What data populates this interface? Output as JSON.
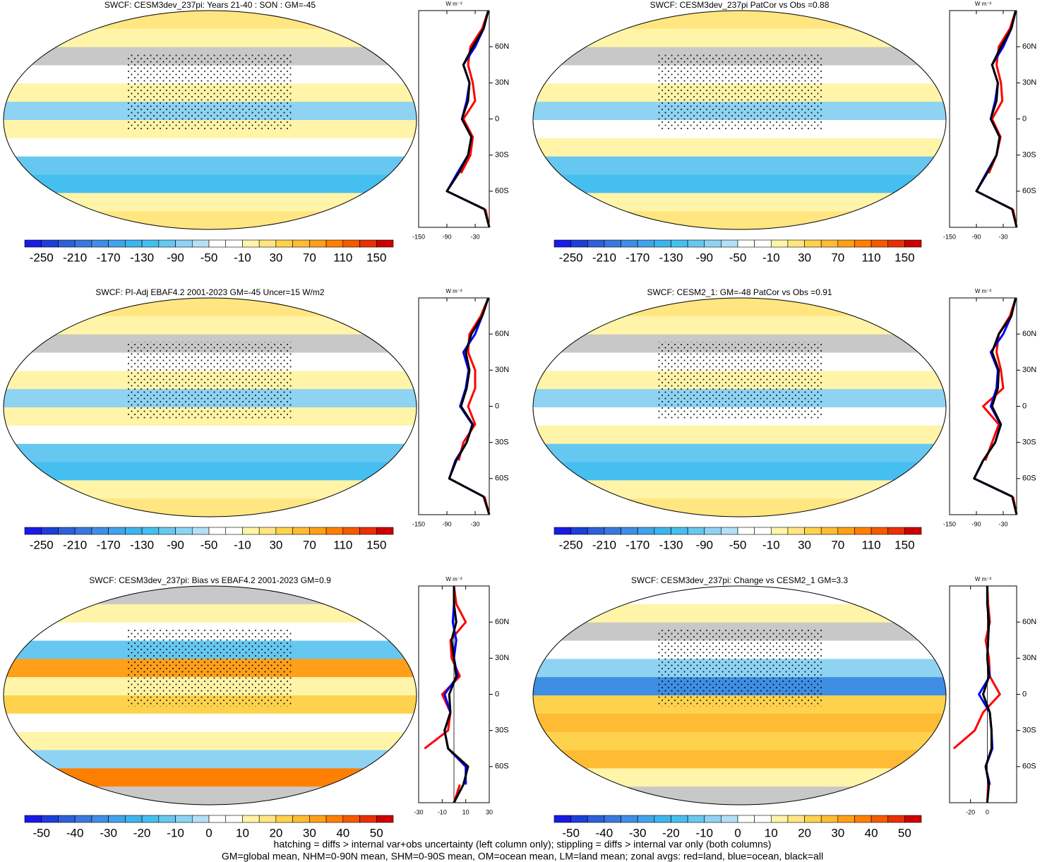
{
  "chart_data": [
    {
      "type": "map",
      "title": "SWCF: CESM3dev_237pi: Years 21-40 : SON : GM=-45",
      "colorbar_lim": [
        -270,
        170
      ],
      "colorbar_ticks": [
        -250,
        -210,
        -170,
        -130,
        -90,
        -50,
        -10,
        30,
        70,
        110,
        150
      ],
      "colorbar_colors": [
        "#1a1ae6",
        "#1e3ed8",
        "#2f5fd8",
        "#3a78dd",
        "#3f8ee3",
        "#42a3ea",
        "#3db4ec",
        "#45bff0",
        "#66c8f0",
        "#8ed3f2",
        "#b3e0f5",
        "#ffffff",
        "#ffffff",
        "#fff4a8",
        "#ffe680",
        "#ffd24d",
        "#ffbb33",
        "#ff9f1a",
        "#ff8000",
        "#f55a00",
        "#e83000",
        "#cc0000"
      ]
    },
    {
      "type": "line",
      "x_label": "W m⁻²",
      "xlim": [
        -150,
        0
      ],
      "xticks": [
        -150,
        -90,
        -30
      ],
      "ylim": [
        -90,
        90
      ],
      "yticks": [
        {
          "value": -60,
          "label": "60S"
        },
        {
          "value": -30,
          "label": "30S"
        },
        {
          "value": 0,
          "label": "0"
        },
        {
          "value": 30,
          "label": "30N"
        },
        {
          "value": 60,
          "label": "60N"
        }
      ],
      "y": [
        -90,
        -75,
        -60,
        -45,
        -30,
        -15,
        0,
        15,
        30,
        45,
        60,
        75,
        90
      ],
      "series": [
        {
          "color": "#ff0000",
          "values": [
            0,
            -8,
            null,
            -60,
            -40,
            -35,
            -55,
            -30,
            -35,
            -45,
            -40,
            -15,
            -2
          ]
        },
        {
          "color": "#0000ff",
          "values": [
            null,
            -10,
            -90,
            -68,
            -45,
            -38,
            -58,
            -48,
            -42,
            -55,
            -30,
            -12,
            -2
          ]
        },
        {
          "color": "#000000",
          "values": [
            0,
            -10,
            -90,
            -65,
            -45,
            -38,
            -58,
            -45,
            -42,
            -55,
            -35,
            -12,
            -2
          ]
        }
      ]
    },
    {
      "type": "map",
      "title": "SWCF: CESM3dev_237pi PatCor vs Obs =0.88",
      "colorbar_lim": [
        -270,
        170
      ],
      "colorbar_ticks": [
        -250,
        -210,
        -170,
        -130,
        -90,
        -50,
        -10,
        30,
        70,
        110,
        150
      ],
      "colorbar_colors": [
        "#1a1ae6",
        "#1e3ed8",
        "#2f5fd8",
        "#3a78dd",
        "#3f8ee3",
        "#42a3ea",
        "#3db4ec",
        "#45bff0",
        "#66c8f0",
        "#8ed3f2",
        "#b3e0f5",
        "#ffffff",
        "#ffffff",
        "#fff4a8",
        "#ffe680",
        "#ffd24d",
        "#ffbb33",
        "#ff9f1a",
        "#ff8000",
        "#f55a00",
        "#e83000",
        "#cc0000"
      ]
    },
    {
      "type": "line",
      "x_label": "W m⁻²",
      "xlim": [
        -150,
        0
      ],
      "xticks": [
        -150,
        -90,
        -30
      ],
      "ylim": [
        -90,
        90
      ],
      "yticks": [
        {
          "value": -60,
          "label": "60S"
        },
        {
          "value": -30,
          "label": "30S"
        },
        {
          "value": 0,
          "label": "0"
        },
        {
          "value": 30,
          "label": "30N"
        },
        {
          "value": 60,
          "label": "60N"
        }
      ],
      "y": [
        -90,
        -75,
        -60,
        -45,
        -30,
        -15,
        0,
        15,
        30,
        45,
        60,
        75,
        90
      ],
      "series": [
        {
          "color": "#ff0000",
          "values": [
            0,
            -8,
            null,
            -62,
            -45,
            -36,
            -55,
            -32,
            -35,
            -45,
            -40,
            -15,
            -2
          ]
        },
        {
          "color": "#0000ff",
          "values": [
            null,
            -10,
            -90,
            -68,
            -45,
            -38,
            -58,
            -48,
            -42,
            -55,
            -30,
            -12,
            -2
          ]
        },
        {
          "color": "#000000",
          "values": [
            0,
            -10,
            -90,
            -66,
            -45,
            -38,
            -58,
            -45,
            -42,
            -55,
            -35,
            -12,
            -2
          ]
        }
      ]
    },
    {
      "type": "map",
      "title": "SWCF: PI-Adj EBAF4.2 2001-2023 GM=-45 Uncer=15 W/m2",
      "colorbar_lim": [
        -270,
        170
      ],
      "colorbar_ticks": [
        -250,
        -210,
        -170,
        -130,
        -90,
        -50,
        -10,
        30,
        70,
        110,
        150
      ],
      "colorbar_colors": [
        "#1a1ae6",
        "#1e3ed8",
        "#2f5fd8",
        "#3a78dd",
        "#3f8ee3",
        "#42a3ea",
        "#3db4ec",
        "#45bff0",
        "#66c8f0",
        "#8ed3f2",
        "#b3e0f5",
        "#ffffff",
        "#ffffff",
        "#fff4a8",
        "#ffe680",
        "#ffd24d",
        "#ffbb33",
        "#ff9f1a",
        "#ff8000",
        "#f55a00",
        "#e83000",
        "#cc0000"
      ]
    },
    {
      "type": "line",
      "x_label": "W m⁻²",
      "xlim": [
        -150,
        0
      ],
      "xticks": [
        -150,
        -90,
        -30
      ],
      "ylim": [
        -90,
        90
      ],
      "yticks": [
        {
          "value": -60,
          "label": "60S"
        },
        {
          "value": -30,
          "label": "30S"
        },
        {
          "value": 0,
          "label": "0"
        },
        {
          "value": 30,
          "label": "30N"
        },
        {
          "value": 60,
          "label": "60N"
        }
      ],
      "y": [
        -90,
        -75,
        -60,
        -45,
        -30,
        -15,
        0,
        15,
        30,
        45,
        60,
        75,
        90
      ],
      "series": [
        {
          "color": "#ff0000",
          "values": [
            0,
            -10,
            null,
            -65,
            -55,
            -30,
            -45,
            -30,
            -30,
            -45,
            -42,
            -18,
            -2
          ]
        },
        {
          "color": "#0000ff",
          "values": [
            null,
            -12,
            -85,
            -72,
            -48,
            -36,
            -62,
            -50,
            -44,
            -55,
            -30,
            -15,
            -2
          ]
        },
        {
          "color": "#000000",
          "values": [
            0,
            -12,
            -85,
            -70,
            -48,
            -35,
            -60,
            -48,
            -42,
            -50,
            -38,
            -15,
            -2
          ]
        }
      ]
    },
    {
      "type": "map",
      "title": "SWCF: CESM2_1: GM=-48 PatCor vs Obs =0.91",
      "colorbar_lim": [
        -270,
        170
      ],
      "colorbar_ticks": [
        -250,
        -210,
        -170,
        -130,
        -90,
        -50,
        -10,
        30,
        70,
        110,
        150
      ],
      "colorbar_colors": [
        "#1a1ae6",
        "#1e3ed8",
        "#2f5fd8",
        "#3a78dd",
        "#3f8ee3",
        "#42a3ea",
        "#3db4ec",
        "#45bff0",
        "#66c8f0",
        "#8ed3f2",
        "#b3e0f5",
        "#ffffff",
        "#ffffff",
        "#fff4a8",
        "#ffe680",
        "#ffd24d",
        "#ffbb33",
        "#ff9f1a",
        "#ff8000",
        "#f55a00",
        "#e83000",
        "#cc0000"
      ]
    },
    {
      "type": "line",
      "x_label": "W m⁻²",
      "xlim": [
        -150,
        0
      ],
      "xticks": [
        -150,
        -90,
        -30
      ],
      "ylim": [
        -90,
        90
      ],
      "yticks": [
        {
          "value": -60,
          "label": "60S"
        },
        {
          "value": -30,
          "label": "30S"
        },
        {
          "value": 0,
          "label": "0"
        },
        {
          "value": 30,
          "label": "30N"
        },
        {
          "value": 60,
          "label": "60N"
        }
      ],
      "y": [
        -90,
        -75,
        -60,
        -45,
        -30,
        -15,
        0,
        15,
        30,
        45,
        60,
        75,
        90
      ],
      "series": [
        {
          "color": "#ff0000",
          "values": [
            0,
            -8,
            null,
            -70,
            -55,
            -40,
            -75,
            -30,
            -35,
            -45,
            -40,
            -15,
            -2
          ]
        },
        {
          "color": "#0000ff",
          "values": [
            null,
            -10,
            -95,
            -75,
            -48,
            -36,
            -58,
            -45,
            -42,
            -58,
            -30,
            -12,
            -2
          ]
        },
        {
          "color": "#000000",
          "values": [
            0,
            -10,
            -95,
            -75,
            -48,
            -35,
            -55,
            -42,
            -40,
            -55,
            -40,
            -12,
            -2
          ]
        }
      ]
    },
    {
      "type": "map",
      "title": "SWCF: CESM3dev_237pi: Bias vs EBAF4.2 2001-2023  GM=0.9",
      "colorbar_lim": [
        -55,
        55
      ],
      "colorbar_ticks": [
        -50,
        -40,
        -30,
        -20,
        -10,
        0,
        10,
        20,
        30,
        40,
        50
      ],
      "colorbar_colors": [
        "#1a1ae6",
        "#1e3ed8",
        "#2f5fd8",
        "#3a78dd",
        "#3f8ee3",
        "#42a3ea",
        "#3db4ec",
        "#45bff0",
        "#66c8f0",
        "#8ed3f2",
        "#b3e0f5",
        "#ffffff",
        "#ffffff",
        "#fff4a8",
        "#ffe680",
        "#ffd24d",
        "#ffbb33",
        "#ff9f1a",
        "#ff8000",
        "#f55a00",
        "#e83000",
        "#cc0000"
      ]
    },
    {
      "type": "line",
      "x_label": "W m⁻²",
      "xlim": [
        -30,
        30
      ],
      "xticks": [
        -30,
        -10,
        10,
        30
      ],
      "ylim": [
        -90,
        90
      ],
      "yticks": [
        {
          "value": -60,
          "label": "60S"
        },
        {
          "value": -30,
          "label": "30S"
        },
        {
          "value": 0,
          "label": "0"
        },
        {
          "value": 30,
          "label": "30N"
        },
        {
          "value": 60,
          "label": "60N"
        }
      ],
      "y": [
        -90,
        -75,
        -60,
        -45,
        -30,
        -15,
        0,
        15,
        30,
        45,
        60,
        75,
        90
      ],
      "series": [
        {
          "color": "#ff0000",
          "values": [
            0,
            5,
            null,
            -25,
            -5,
            -3,
            -10,
            5,
            -2,
            -3,
            10,
            2,
            0
          ]
        },
        {
          "color": "#0000ff",
          "values": [
            null,
            10,
            10,
            -5,
            -8,
            -3,
            -8,
            3,
            0,
            2,
            -1,
            0,
            0
          ]
        },
        {
          "color": "#000000",
          "values": [
            0,
            8,
            12,
            -5,
            -8,
            -3,
            -4,
            2,
            0,
            -2,
            2,
            0,
            0
          ]
        }
      ]
    },
    {
      "type": "map",
      "title": "SWCF: CESM3dev_237pi: Change vs CESM2_1 GM=3.3",
      "colorbar_lim": [
        -55,
        55
      ],
      "colorbar_ticks": [
        -50,
        -40,
        -30,
        -20,
        -10,
        0,
        10,
        20,
        30,
        40,
        50
      ],
      "colorbar_colors": [
        "#1a1ae6",
        "#1e3ed8",
        "#2f5fd8",
        "#3a78dd",
        "#3f8ee3",
        "#42a3ea",
        "#3db4ec",
        "#45bff0",
        "#66c8f0",
        "#8ed3f2",
        "#b3e0f5",
        "#ffffff",
        "#ffffff",
        "#fff4a8",
        "#ffe680",
        "#ffd24d",
        "#ffbb33",
        "#ff9f1a",
        "#ff8000",
        "#f55a00",
        "#e83000",
        "#cc0000"
      ]
    },
    {
      "type": "line",
      "x_label": "W m⁻²",
      "xlim": [
        -45,
        35
      ],
      "xticks": [
        -20,
        0
      ],
      "ylim": [
        -90,
        90
      ],
      "yticks": [
        {
          "value": -60,
          "label": "60S"
        },
        {
          "value": -30,
          "label": "30S"
        },
        {
          "value": 0,
          "label": "0"
        },
        {
          "value": 30,
          "label": "30N"
        },
        {
          "value": 60,
          "label": "60N"
        }
      ],
      "y": [
        -90,
        -75,
        -60,
        -45,
        -30,
        -15,
        0,
        15,
        30,
        45,
        60,
        75,
        90
      ],
      "series": [
        {
          "color": "#ff0000",
          "values": [
            0,
            1,
            null,
            -40,
            -15,
            -5,
            15,
            3,
            2,
            -2,
            3,
            1,
            0
          ]
        },
        {
          "color": "#0000ff",
          "values": [
            null,
            3,
            -2,
            6,
            5,
            3,
            -10,
            3,
            0,
            1,
            2,
            0,
            0
          ]
        },
        {
          "color": "#000000",
          "values": [
            0,
            2,
            -2,
            5,
            5,
            3,
            -5,
            2,
            0,
            1,
            2,
            0,
            0
          ]
        }
      ]
    }
  ],
  "footnotes": [
    "hatching = diffs > internal var+obs uncertainty (left column only); stippling = diffs > internal var only (both columns)",
    "GM=global mean, NHM=0-90N mean, SHM=0-90S mean, OM=ocean mean, LM=land mean; zonal avgs: red=land, blue=ocean, black=all"
  ]
}
